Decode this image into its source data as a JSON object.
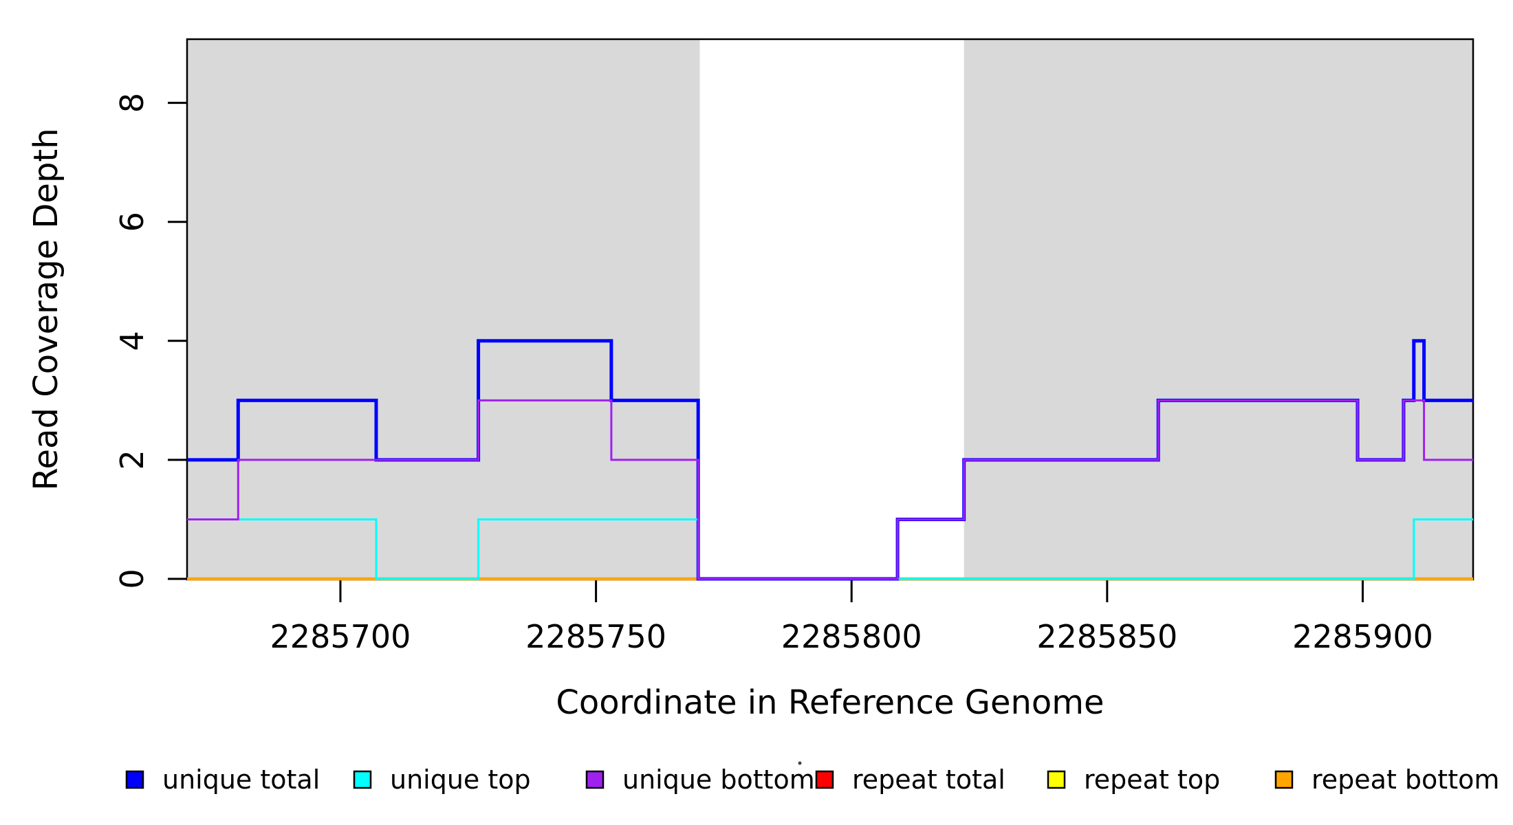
{
  "chart_data": {
    "type": "line",
    "subtype": "step",
    "title": "",
    "xlabel": "Coordinate in Reference Genome",
    "ylabel": "Read Coverage Depth",
    "xlim": [
      2285670,
      2285921.6
    ],
    "ylim": [
      0,
      9.07
    ],
    "x_ticks": [
      2285700,
      2285750,
      2285800,
      2285850,
      2285900
    ],
    "y_ticks": [
      0,
      2,
      4,
      6,
      8
    ],
    "grid": false,
    "axis_color": "#000000",
    "background_shading": {
      "color": "#d9d9d9",
      "regions": [
        [
          2285670,
          2285770.3
        ],
        [
          2285822,
          2285921.6
        ]
      ]
    },
    "legend_position": "bottom",
    "has_stray_mark": true,
    "series": [
      {
        "name": "unique total",
        "color": "#0000ff",
        "line_width": 5,
        "steps": [
          [
            2285670,
            2
          ],
          [
            2285680,
            3
          ],
          [
            2285707,
            2
          ],
          [
            2285727,
            4
          ],
          [
            2285753,
            3
          ],
          [
            2285770,
            0
          ],
          [
            2285809,
            1
          ],
          [
            2285822,
            2
          ],
          [
            2285860,
            3
          ],
          [
            2285899,
            2
          ],
          [
            2285908,
            3
          ],
          [
            2285910,
            4
          ],
          [
            2285912,
            3
          ]
        ]
      },
      {
        "name": "unique top",
        "color": "#00ffff",
        "line_width": 3,
        "steps": [
          [
            2285670,
            1
          ],
          [
            2285707,
            0
          ],
          [
            2285727,
            1
          ],
          [
            2285770,
            0
          ],
          [
            2285910,
            1
          ]
        ]
      },
      {
        "name": "unique bottom",
        "color": "#a020f0",
        "line_width": 3,
        "steps": [
          [
            2285670,
            1
          ],
          [
            2285680,
            2
          ],
          [
            2285727,
            3
          ],
          [
            2285753,
            2
          ],
          [
            2285770,
            0
          ],
          [
            2285809,
            1
          ],
          [
            2285822,
            2
          ],
          [
            2285860,
            3
          ],
          [
            2285899,
            2
          ],
          [
            2285908,
            3
          ],
          [
            2285912,
            2
          ]
        ]
      },
      {
        "name": "repeat total",
        "color": "#ff0000",
        "line_width": 3,
        "steps": [
          [
            2285670,
            0
          ]
        ]
      },
      {
        "name": "repeat top",
        "color": "#ffff00",
        "line_width": 3,
        "steps": [
          [
            2285670,
            0
          ]
        ]
      },
      {
        "name": "repeat bottom",
        "color": "#ffa500",
        "line_width": 4.5,
        "steps": [
          [
            2285670,
            0
          ]
        ]
      }
    ],
    "draw_order": [
      3,
      4,
      5,
      0,
      1,
      2
    ]
  }
}
